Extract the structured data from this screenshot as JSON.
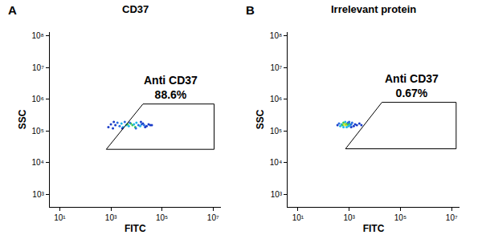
{
  "chart_data": [
    {
      "type": "scatter",
      "title": "CD37",
      "annotations": [
        "A"
      ],
      "x_label": "FITC",
      "y_label": "SSC",
      "log": true,
      "grid": false,
      "marker": "dot",
      "xlim": [
        4,
        20000000
      ],
      "ylim": [
        400,
        130000000
      ],
      "xticks": [
        {
          "value": 10,
          "label": "10¹"
        },
        {
          "value": 1000,
          "label": "10³"
        },
        {
          "value": 100000,
          "label": "10⁵"
        },
        {
          "value": 10000000,
          "label": "10⁷"
        }
      ],
      "yticks": [
        {
          "value": 1000,
          "label": "10³"
        },
        {
          "value": 10000,
          "label": "10⁴"
        },
        {
          "value": 100000,
          "label": "10⁵"
        },
        {
          "value": 1000000,
          "label": "10⁶"
        },
        {
          "value": 10000000,
          "label": "10⁷"
        },
        {
          "value": 100000000,
          "label": "10⁸"
        }
      ],
      "x": [
        800,
        1000,
        1200,
        1500,
        1800,
        2200,
        2600,
        3000,
        3500,
        4000,
        4500,
        5000,
        6000,
        7000,
        8000,
        9000,
        10000,
        12000,
        14000,
        16000,
        18000,
        20000,
        25000,
        30000,
        35000,
        1300,
        2800,
        5500,
        9500,
        15000,
        22000,
        40000
      ],
      "values": [
        130000,
        160000,
        120000,
        150000,
        180000,
        140000,
        170000,
        130000,
        190000,
        150000,
        160000,
        140000,
        170000,
        150000,
        160000,
        130000,
        180000,
        150000,
        140000,
        160000,
        170000,
        150000,
        140000,
        160000,
        150000,
        190000,
        120000,
        180000,
        120000,
        190000,
        130000,
        150000
      ],
      "colors": [
        "#1a3cc8",
        "#1a3cc8",
        "#1a3cc8",
        "#1a3cc8",
        "#2a6ee0",
        "#2a6ee0",
        "#20b8e8",
        "#20b8e8",
        "#2a6ee0",
        "#20b8e8",
        "#3cc850",
        "#20b8e8",
        "#3cc850",
        "#3cc850",
        "#20b8e8",
        "#3cc850",
        "#20b8e8",
        "#2a6ee0",
        "#20b8e8",
        "#2a6ee0",
        "#1a3cc8",
        "#2a6ee0",
        "#1a3cc8",
        "#1a3cc8",
        "#1a3cc8",
        "#1a3cc8",
        "#1a3cc8",
        "#2a6ee0",
        "#2a6ee0",
        "#1a3cc8",
        "#1a3cc8",
        "#1a3cc8"
      ],
      "gate": {
        "name": "Anti CD37",
        "value": 88.6,
        "value_label": "88.6%",
        "x": [
          660,
          18000,
          11000000,
          11000000,
          660
        ],
        "y": [
          26000,
          700000,
          700000,
          26000,
          26000
        ]
      }
    },
    {
      "type": "scatter",
      "title": "Irrelevant protein",
      "annotations": [
        "B"
      ],
      "x_label": "FITC",
      "y_label": "SSC",
      "log": true,
      "grid": false,
      "marker": "dot",
      "xlim": [
        4,
        20000000
      ],
      "ylim": [
        400,
        130000000
      ],
      "xticks": [
        {
          "value": 10,
          "label": "10¹"
        },
        {
          "value": 1000,
          "label": "10³"
        },
        {
          "value": 100000,
          "label": "10⁵"
        },
        {
          "value": 10000000,
          "label": "10⁷"
        }
      ],
      "yticks": [
        {
          "value": 1000,
          "label": "10³"
        },
        {
          "value": 10000,
          "label": "10⁴"
        },
        {
          "value": 100000,
          "label": "10⁵"
        },
        {
          "value": 1000000,
          "label": "10⁶"
        },
        {
          "value": 10000000,
          "label": "10⁷"
        },
        {
          "value": 100000000,
          "label": "10⁸"
        }
      ],
      "x": [
        350,
        400,
        450,
        500,
        550,
        600,
        650,
        700,
        750,
        800,
        850,
        900,
        950,
        1000,
        1100,
        1200,
        1300,
        1500,
        1700,
        2000,
        2500,
        3000,
        700,
        800,
        900,
        600,
        1000,
        1200
      ],
      "values": [
        150000,
        170000,
        140000,
        160000,
        150000,
        180000,
        160000,
        150000,
        170000,
        160000,
        150000,
        160000,
        140000,
        170000,
        150000,
        160000,
        180000,
        140000,
        160000,
        150000,
        170000,
        150000,
        190000,
        130000,
        180000,
        130000,
        190000,
        130000
      ],
      "colors": [
        "#1a3cc8",
        "#2a6ee0",
        "#20b8e8",
        "#20b8e8",
        "#3cc850",
        "#3cc850",
        "#c8e632",
        "#e6e632",
        "#c8e632",
        "#3cc850",
        "#c8e632",
        "#3cc850",
        "#20b8e8",
        "#3cc850",
        "#20b8e8",
        "#2a6ee0",
        "#2a6ee0",
        "#1a3cc8",
        "#1a3cc8",
        "#1a3cc8",
        "#1a3cc8",
        "#1a3cc8",
        "#20b8e8",
        "#20b8e8",
        "#2a6ee0",
        "#20b8e8",
        "#2a6ee0",
        "#1a3cc8"
      ],
      "gate": {
        "name": "Anti CD37",
        "value": 0.67,
        "value_label": "0.67%",
        "x": [
          720,
          19000,
          15000000,
          15000000,
          720
        ],
        "y": [
          27000,
          790000,
          790000,
          27000,
          27000
        ]
      }
    }
  ]
}
